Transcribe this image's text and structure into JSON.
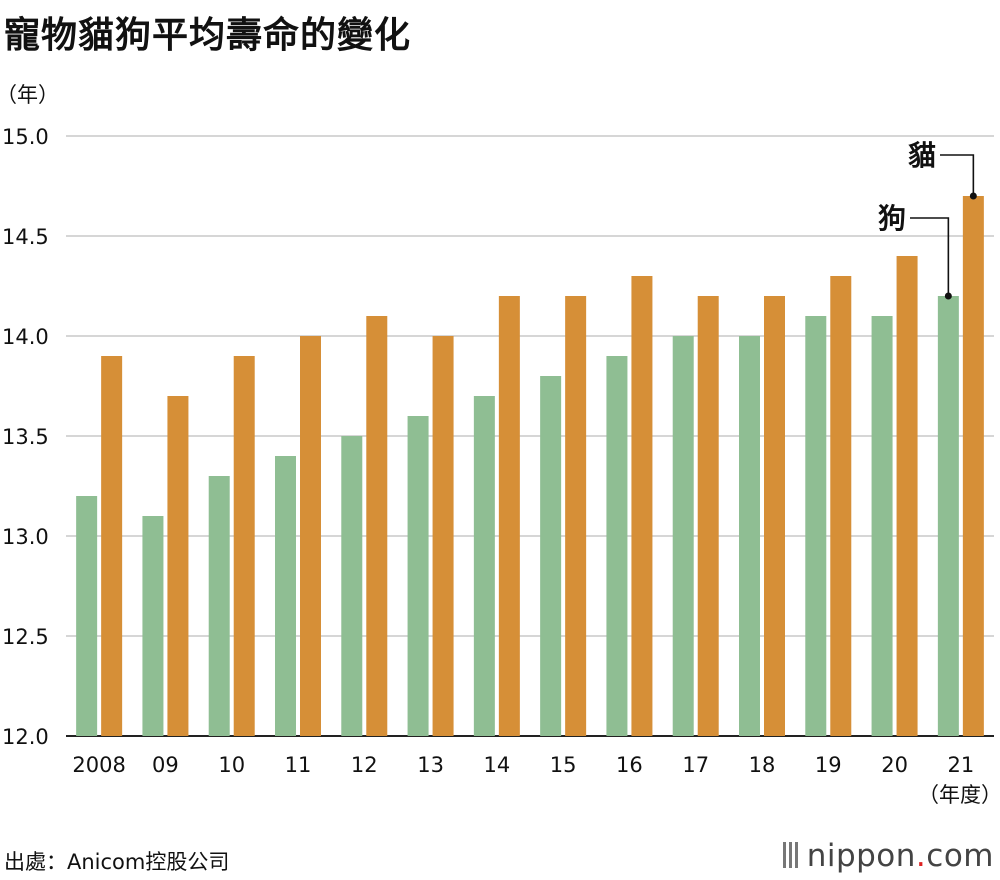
{
  "page": {
    "title": "寵物貓狗平均壽命的變化",
    "source": "出處：Anicom控股公司",
    "logo_brand": "nippon",
    "logo_dot": ".",
    "logo_tld": "com"
  },
  "colors": {
    "dog": "#8fbe93",
    "cat": "#d68f37",
    "grid": "#c8c8c8",
    "axis": "#222222"
  },
  "chart_data": {
    "type": "bar",
    "title": "寵物貓狗平均壽命的變化",
    "ylabel": "（年）",
    "xlabel": "（年度）",
    "ylim": [
      12.0,
      15.0
    ],
    "yticks": [
      "12.0",
      "12.5",
      "13.0",
      "13.5",
      "14.0",
      "14.5",
      "15.0"
    ],
    "categories": [
      "2008",
      "09",
      "10",
      "11",
      "12",
      "13",
      "14",
      "15",
      "16",
      "17",
      "18",
      "19",
      "20",
      "21"
    ],
    "series": [
      {
        "name": "狗",
        "values": [
          13.2,
          13.1,
          13.3,
          13.4,
          13.5,
          13.6,
          13.7,
          13.8,
          13.9,
          14.0,
          14.0,
          14.1,
          14.1,
          14.2
        ]
      },
      {
        "name": "貓",
        "values": [
          13.9,
          13.7,
          13.9,
          14.0,
          14.1,
          14.0,
          14.2,
          14.2,
          14.3,
          14.2,
          14.2,
          14.3,
          14.4,
          14.7
        ]
      }
    ],
    "grid": true,
    "annotations": [
      "貓",
      "狗"
    ]
  }
}
